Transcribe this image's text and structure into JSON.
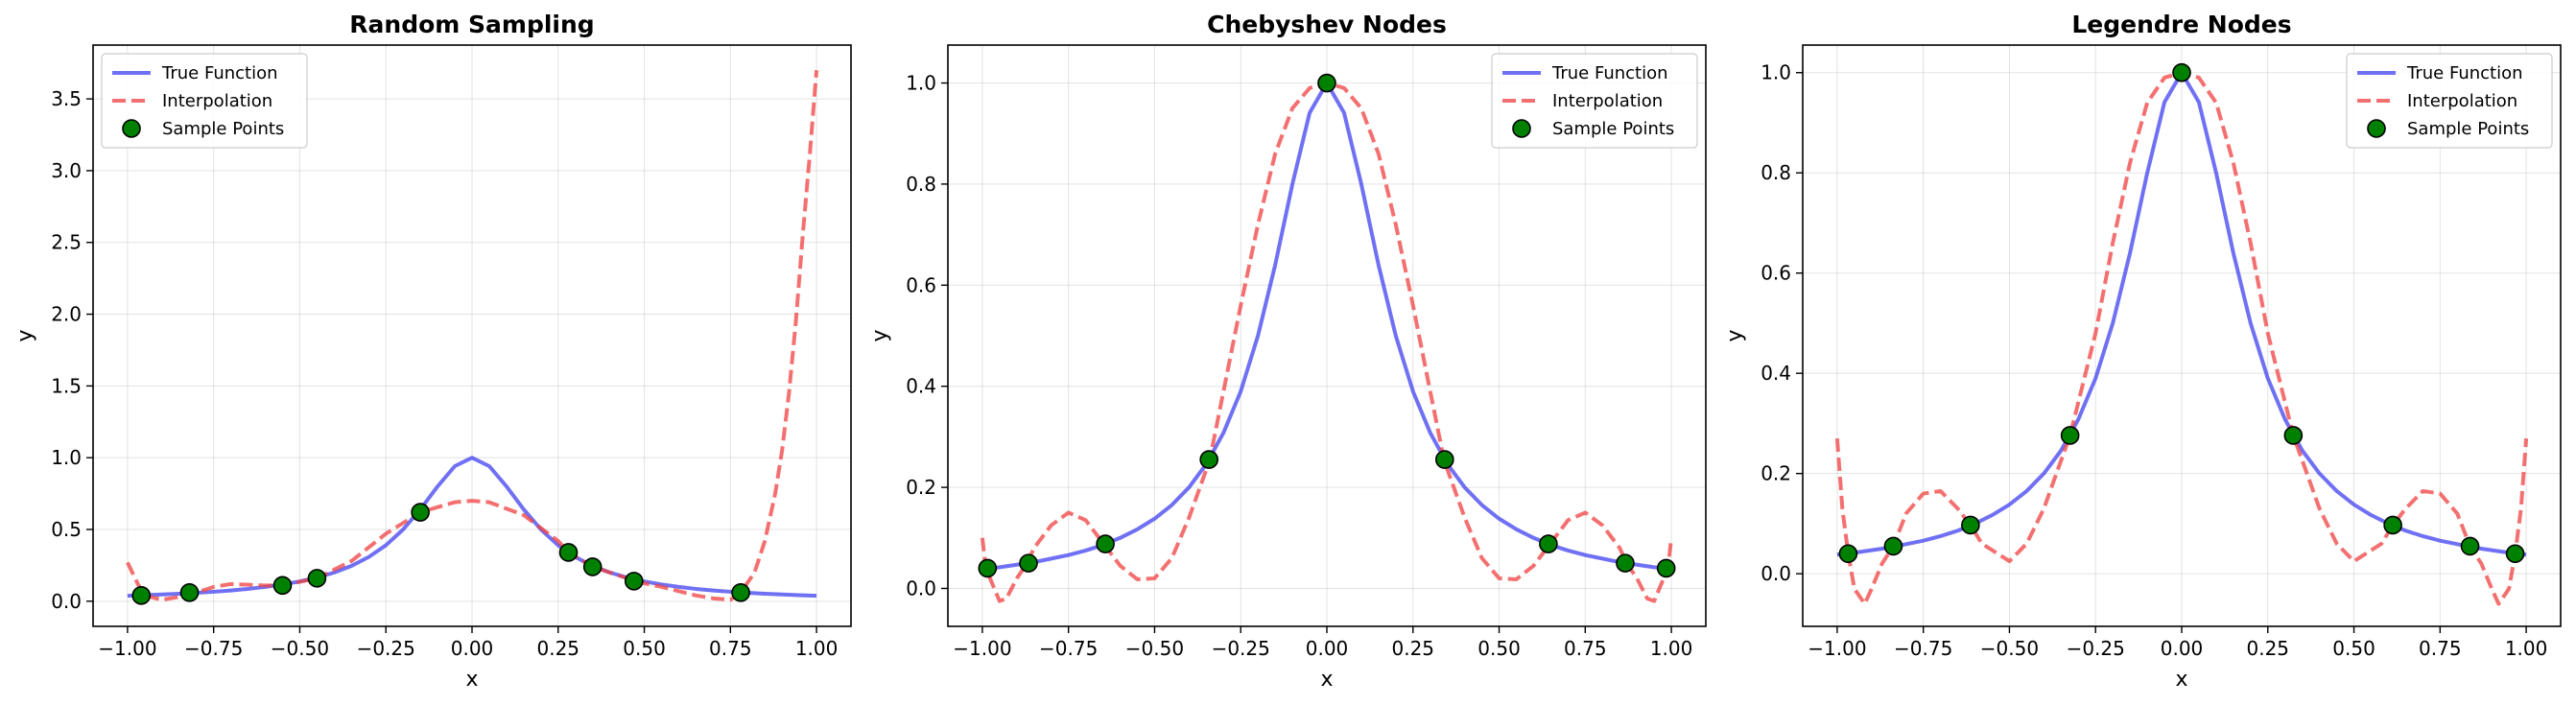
{
  "chart_data": [
    {
      "type": "line",
      "title": "Random Sampling",
      "xlabel": "x",
      "ylabel": "y",
      "xlim": [
        -1.1,
        1.1
      ],
      "ylim": [
        -0.175,
        3.875
      ],
      "xticks": [
        -1.0,
        -0.75,
        -0.5,
        -0.25,
        0.0,
        0.25,
        0.5,
        0.75,
        1.0
      ],
      "xtick_labels": [
        "−1.00",
        "−0.75",
        "−0.50",
        "−0.25",
        "0.00",
        "0.25",
        "0.50",
        "0.75",
        "1.00"
      ],
      "yticks": [
        0.0,
        0.5,
        1.0,
        1.5,
        2.0,
        2.5,
        3.0,
        3.5
      ],
      "ytick_labels": [
        "0.0",
        "0.5",
        "1.0",
        "1.5",
        "2.0",
        "2.5",
        "3.0",
        "3.5"
      ],
      "grid": true,
      "legend": "top-left",
      "series": [
        {
          "name": "True Function",
          "style": "solid",
          "color": "#4040f0",
          "x": [
            -1.0,
            -0.95,
            -0.9,
            -0.85,
            -0.8,
            -0.75,
            -0.7,
            -0.65,
            -0.6,
            -0.55,
            -0.5,
            -0.45,
            -0.4,
            -0.35,
            -0.3,
            -0.25,
            -0.2,
            -0.15,
            -0.1,
            -0.05,
            0.0,
            0.05,
            0.1,
            0.15,
            0.2,
            0.25,
            0.3,
            0.35,
            0.4,
            0.45,
            0.5,
            0.55,
            0.6,
            0.65,
            0.7,
            0.75,
            0.8,
            0.85,
            0.9,
            0.95,
            1.0
          ],
          "y": [
            0.038,
            0.042,
            0.047,
            0.052,
            0.059,
            0.066,
            0.075,
            0.086,
            0.1,
            0.117,
            0.138,
            0.165,
            0.2,
            0.246,
            0.308,
            0.39,
            0.5,
            0.64,
            0.8,
            0.941,
            1.0,
            0.941,
            0.8,
            0.64,
            0.5,
            0.39,
            0.308,
            0.246,
            0.2,
            0.165,
            0.138,
            0.117,
            0.1,
            0.086,
            0.075,
            0.066,
            0.059,
            0.052,
            0.047,
            0.042,
            0.038
          ]
        },
        {
          "name": "Interpolation",
          "style": "dashed",
          "color": "#f04040",
          "x": [
            -1.0,
            -0.97,
            -0.95,
            -0.9,
            -0.85,
            -0.8,
            -0.75,
            -0.7,
            -0.6,
            -0.55,
            -0.45,
            -0.35,
            -0.25,
            -0.15,
            -0.05,
            0.0,
            0.05,
            0.15,
            0.25,
            0.28,
            0.35,
            0.45,
            0.47,
            0.55,
            0.6,
            0.65,
            0.7,
            0.75,
            0.78,
            0.82,
            0.85,
            0.88,
            0.9,
            0.92,
            0.94,
            0.96,
            0.98,
            1.0
          ],
          "y": [
            0.27,
            0.12,
            0.04,
            0.01,
            0.03,
            0.06,
            0.1,
            0.12,
            0.11,
            0.11,
            0.16,
            0.28,
            0.47,
            0.62,
            0.69,
            0.7,
            0.69,
            0.6,
            0.42,
            0.34,
            0.24,
            0.16,
            0.14,
            0.1,
            0.07,
            0.04,
            0.02,
            0.01,
            0.06,
            0.2,
            0.42,
            0.75,
            1.05,
            1.45,
            1.95,
            2.55,
            3.1,
            3.7
          ]
        },
        {
          "name": "Sample Points",
          "style": "markers",
          "color": "#008000",
          "x": [
            -0.96,
            -0.82,
            -0.55,
            -0.45,
            -0.15,
            0.28,
            0.35,
            0.47,
            0.78
          ],
          "y": [
            0.04,
            0.06,
            0.11,
            0.16,
            0.62,
            0.34,
            0.24,
            0.14,
            0.06
          ]
        }
      ]
    },
    {
      "type": "line",
      "title": "Chebyshev Nodes",
      "xlabel": "x",
      "ylabel": "y",
      "xlim": [
        -1.1,
        1.1
      ],
      "ylim": [
        -0.075,
        1.075
      ],
      "xticks": [
        -1.0,
        -0.75,
        -0.5,
        -0.25,
        0.0,
        0.25,
        0.5,
        0.75,
        1.0
      ],
      "xtick_labels": [
        "−1.00",
        "−0.75",
        "−0.50",
        "−0.25",
        "0.00",
        "0.25",
        "0.50",
        "0.75",
        "1.00"
      ],
      "yticks": [
        0.0,
        0.2,
        0.4,
        0.6,
        0.8,
        1.0
      ],
      "ytick_labels": [
        "0.0",
        "0.2",
        "0.4",
        "0.6",
        "0.8",
        "1.0"
      ],
      "grid": true,
      "legend": "top-right",
      "series": [
        {
          "name": "True Function",
          "style": "solid",
          "color": "#4040f0",
          "x": [
            -1.0,
            -0.95,
            -0.9,
            -0.85,
            -0.8,
            -0.75,
            -0.7,
            -0.65,
            -0.6,
            -0.55,
            -0.5,
            -0.45,
            -0.4,
            -0.35,
            -0.3,
            -0.25,
            -0.2,
            -0.15,
            -0.1,
            -0.05,
            0.0,
            0.05,
            0.1,
            0.15,
            0.2,
            0.25,
            0.3,
            0.35,
            0.4,
            0.45,
            0.5,
            0.55,
            0.6,
            0.65,
            0.7,
            0.75,
            0.8,
            0.85,
            0.9,
            0.95,
            1.0
          ],
          "y": [
            0.038,
            0.042,
            0.047,
            0.052,
            0.059,
            0.066,
            0.075,
            0.086,
            0.1,
            0.117,
            0.138,
            0.165,
            0.2,
            0.246,
            0.308,
            0.39,
            0.5,
            0.64,
            0.8,
            0.941,
            1.0,
            0.941,
            0.8,
            0.64,
            0.5,
            0.39,
            0.308,
            0.246,
            0.2,
            0.165,
            0.138,
            0.117,
            0.1,
            0.086,
            0.075,
            0.066,
            0.059,
            0.052,
            0.047,
            0.042,
            0.038
          ]
        },
        {
          "name": "Interpolation",
          "style": "dashed",
          "color": "#f04040",
          "x": [
            -1.0,
            -0.99,
            -0.95,
            -0.93,
            -0.9,
            -0.87,
            -0.85,
            -0.8,
            -0.75,
            -0.7,
            -0.65,
            -0.6,
            -0.55,
            -0.5,
            -0.45,
            -0.4,
            -0.34,
            -0.3,
            -0.25,
            -0.2,
            -0.15,
            -0.1,
            -0.05,
            0.0,
            0.05,
            0.1,
            0.15,
            0.2,
            0.25,
            0.3,
            0.34,
            0.4,
            0.45,
            0.5,
            0.55,
            0.6,
            0.65,
            0.7,
            0.75,
            0.8,
            0.85,
            0.87,
            0.9,
            0.93,
            0.95,
            0.99,
            1.0
          ],
          "y": [
            0.1,
            0.04,
            -0.025,
            -0.02,
            0.02,
            0.05,
            0.08,
            0.125,
            0.15,
            0.135,
            0.09,
            0.045,
            0.018,
            0.02,
            0.06,
            0.14,
            0.254,
            0.39,
            0.56,
            0.72,
            0.86,
            0.95,
            0.99,
            1.0,
            0.99,
            0.95,
            0.86,
            0.72,
            0.56,
            0.39,
            0.254,
            0.14,
            0.06,
            0.02,
            0.018,
            0.045,
            0.09,
            0.135,
            0.15,
            0.125,
            0.08,
            0.05,
            0.02,
            -0.02,
            -0.025,
            0.04,
            0.1
          ]
        },
        {
          "name": "Sample Points",
          "style": "markers",
          "color": "#008000",
          "x": [
            -0.985,
            -0.866,
            -0.643,
            -0.342,
            0.0,
            0.342,
            0.643,
            0.866,
            0.985
          ],
          "y": [
            0.04,
            0.05,
            0.088,
            0.255,
            1.0,
            0.255,
            0.088,
            0.05,
            0.04
          ]
        }
      ]
    },
    {
      "type": "line",
      "title": "Legendre Nodes",
      "xlabel": "x",
      "ylabel": "y",
      "xlim": [
        -1.1,
        1.1
      ],
      "ylim": [
        -0.105,
        1.055
      ],
      "xticks": [
        -1.0,
        -0.75,
        -0.5,
        -0.25,
        0.0,
        0.25,
        0.5,
        0.75,
        1.0
      ],
      "xtick_labels": [
        "−1.00",
        "−0.75",
        "−0.50",
        "−0.25",
        "0.00",
        "0.25",
        "0.50",
        "0.75",
        "1.00"
      ],
      "yticks": [
        0.0,
        0.2,
        0.4,
        0.6,
        0.8,
        1.0
      ],
      "ytick_labels": [
        "0.0",
        "0.2",
        "0.4",
        "0.6",
        "0.8",
        "1.0"
      ],
      "grid": true,
      "legend": "top-right",
      "series": [
        {
          "name": "True Function",
          "style": "solid",
          "color": "#4040f0",
          "x": [
            -1.0,
            -0.95,
            -0.9,
            -0.85,
            -0.8,
            -0.75,
            -0.7,
            -0.65,
            -0.6,
            -0.55,
            -0.5,
            -0.45,
            -0.4,
            -0.35,
            -0.3,
            -0.25,
            -0.2,
            -0.15,
            -0.1,
            -0.05,
            0.0,
            0.05,
            0.1,
            0.15,
            0.2,
            0.25,
            0.3,
            0.35,
            0.4,
            0.45,
            0.5,
            0.55,
            0.6,
            0.65,
            0.7,
            0.75,
            0.8,
            0.85,
            0.9,
            0.95,
            1.0
          ],
          "y": [
            0.038,
            0.042,
            0.047,
            0.052,
            0.059,
            0.066,
            0.075,
            0.086,
            0.1,
            0.117,
            0.138,
            0.165,
            0.2,
            0.246,
            0.308,
            0.39,
            0.5,
            0.64,
            0.8,
            0.941,
            1.0,
            0.941,
            0.8,
            0.64,
            0.5,
            0.39,
            0.308,
            0.246,
            0.2,
            0.165,
            0.138,
            0.117,
            0.1,
            0.086,
            0.075,
            0.066,
            0.059,
            0.052,
            0.047,
            0.042,
            0.038
          ]
        },
        {
          "name": "Interpolation",
          "style": "dashed",
          "color": "#f04040",
          "x": [
            -1.0,
            -0.985,
            -0.968,
            -0.95,
            -0.92,
            -0.9,
            -0.87,
            -0.837,
            -0.8,
            -0.75,
            -0.7,
            -0.65,
            -0.613,
            -0.58,
            -0.5,
            -0.45,
            -0.4,
            -0.324,
            -0.25,
            -0.2,
            -0.15,
            -0.1,
            -0.05,
            0.0,
            0.05,
            0.1,
            0.15,
            0.2,
            0.25,
            0.324,
            0.4,
            0.45,
            0.5,
            0.58,
            0.613,
            0.65,
            0.7,
            0.75,
            0.8,
            0.837,
            0.87,
            0.9,
            0.92,
            0.95,
            0.968,
            0.985,
            1.0
          ],
          "y": [
            0.27,
            0.13,
            0.04,
            -0.03,
            -0.06,
            -0.03,
            0.02,
            0.055,
            0.12,
            0.16,
            0.165,
            0.13,
            0.097,
            0.06,
            0.025,
            0.06,
            0.13,
            0.276,
            0.48,
            0.66,
            0.82,
            0.94,
            0.99,
            1.0,
            0.99,
            0.94,
            0.82,
            0.66,
            0.48,
            0.276,
            0.13,
            0.06,
            0.025,
            0.06,
            0.097,
            0.13,
            0.165,
            0.16,
            0.12,
            0.055,
            0.02,
            -0.03,
            -0.06,
            -0.03,
            0.04,
            0.13,
            0.27
          ]
        },
        {
          "name": "Sample Points",
          "style": "markers",
          "color": "#008000",
          "x": [
            -0.968,
            -0.837,
            -0.613,
            -0.324,
            0.0,
            0.324,
            0.613,
            0.837,
            0.968
          ],
          "y": [
            0.04,
            0.055,
            0.097,
            0.276,
            1.0,
            0.276,
            0.097,
            0.055,
            0.04
          ]
        }
      ]
    }
  ]
}
